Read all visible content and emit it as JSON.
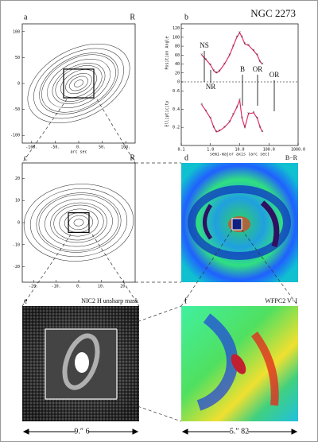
{
  "panel_a": {
    "letter": "a",
    "band": "R",
    "xlabel": "arc sec",
    "xlim": [
      -120,
      120
    ],
    "ylim": [
      -115,
      115
    ],
    "xticks": [
      {
        "value": -100,
        "label": "-100."
      },
      {
        "value": -50,
        "label": "-50."
      },
      {
        "value": 0,
        "label": "0."
      },
      {
        "value": 50,
        "label": "50."
      },
      {
        "value": 100,
        "label": "100."
      }
    ],
    "yticks": [
      100,
      50,
      0,
      -50,
      -100
    ]
  },
  "panel_b": {
    "letter": "b",
    "title": "NGC 2273",
    "xlabel": "semi-major axis (arc sec)",
    "pa_label": "Position Angle",
    "ell_label": "Ellipticity",
    "xlim": [
      0.1,
      1000
    ],
    "xticks": [
      0.1,
      {
        "value": 1,
        "label": "1.0"
      },
      {
        "value": 10,
        "label": "10.0"
      },
      {
        "value": 100,
        "label": "100.0"
      },
      {
        "value": 1000,
        "label": "1000.0"
      }
    ],
    "pa_ylim": [
      0,
      130
    ],
    "pa_yticks": [
      0,
      20,
      40,
      60,
      80,
      100,
      120
    ],
    "ell_ylim": [
      0,
      0.7
    ],
    "ell_yticks": [
      0.2,
      0.4,
      0.6
    ],
    "x": [
      0.5,
      0.7,
      1.0,
      1.3,
      1.6,
      2.0,
      3.0,
      4.5,
      6.0,
      8.0,
      10.0,
      12.0,
      15.0,
      20.0,
      30.0,
      40.0,
      50.0,
      60.0
    ],
    "pa": [
      60,
      50,
      38,
      25,
      20,
      24,
      40,
      60,
      80,
      100,
      110,
      100,
      85,
      82,
      70,
      60,
      45,
      40
    ],
    "ell": [
      0.45,
      0.38,
      0.3,
      0.2,
      0.15,
      0.16,
      0.2,
      0.26,
      0.34,
      0.42,
      0.5,
      0.3,
      0.2,
      0.35,
      0.36,
      0.3,
      0.2,
      0.15
    ],
    "annotations": [
      "NS",
      "NR",
      "B",
      "OR",
      "OR"
    ]
  },
  "panel_c": {
    "letter": "c",
    "band": "R",
    "xlim": [
      -25,
      25
    ],
    "ylim": [
      -27,
      27
    ],
    "xticks": [
      {
        "value": -20,
        "label": "-20."
      },
      {
        "value": -10,
        "label": "-10."
      },
      {
        "value": 0,
        "label": "0."
      },
      {
        "value": 10,
        "label": "10."
      },
      {
        "value": 20,
        "label": "20."
      }
    ],
    "yticks": [
      20,
      10,
      0,
      -10,
      -20
    ]
  },
  "panel_d": {
    "letter": "d",
    "label": "B−R"
  },
  "panel_e": {
    "letter": "e",
    "label": "NIC2 H unsharp mask",
    "scale": "9.″ 6"
  },
  "panel_f": {
    "letter": "f",
    "label": "WFPC2 V−I",
    "scale": "5.″ 82"
  }
}
